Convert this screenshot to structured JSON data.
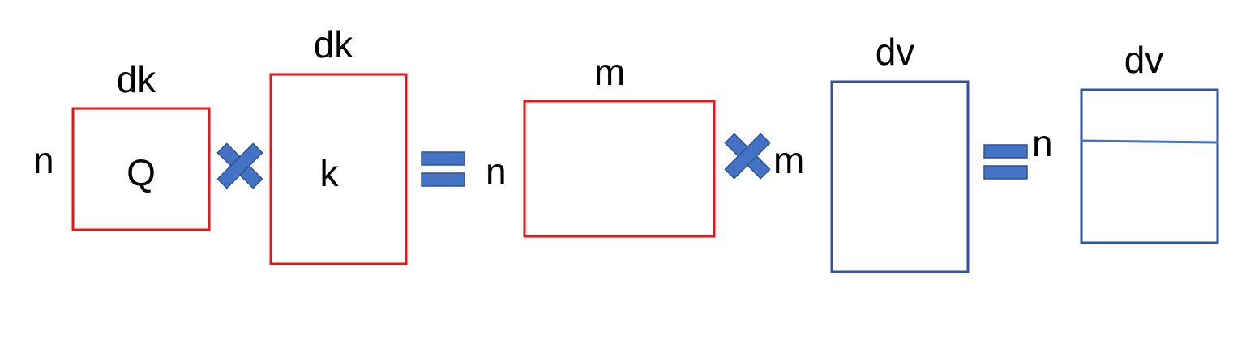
{
  "colors": {
    "red_box": "#e81416",
    "blue_box": "#2f5597",
    "operator": "#4472c4",
    "operator_stroke": "#2f528f",
    "split_line": "#4472c4",
    "text": "#000000"
  },
  "matrices": {
    "q": {
      "name": "Q",
      "top_dim": "dk",
      "left_dim": "n"
    },
    "k": {
      "name": "k",
      "top_dim": "dk"
    },
    "scores": {
      "top_dim": "m",
      "left_dim": "n"
    },
    "v": {
      "top_dim": "dv",
      "left_dim": "m"
    },
    "output": {
      "top_dim": "dv",
      "left_dim": "n"
    }
  },
  "operators": [
    "multiply-icon",
    "equals-icon",
    "multiply-icon",
    "equals-icon"
  ]
}
